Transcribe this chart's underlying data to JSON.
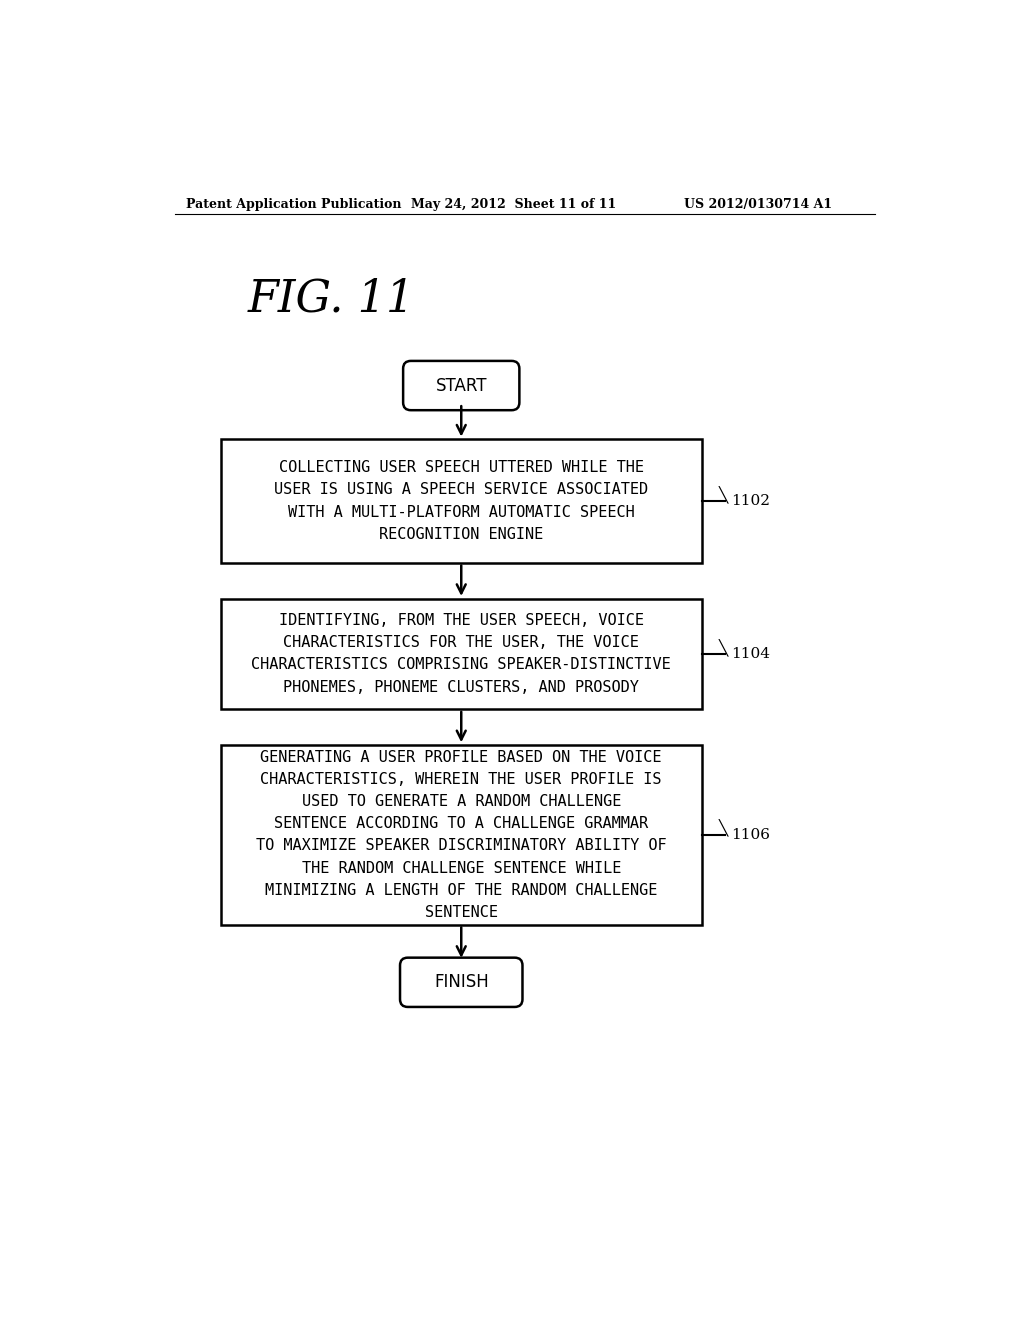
{
  "header_left": "Patent Application Publication",
  "header_mid": "May 24, 2012  Sheet 11 of 11",
  "header_right": "US 2012/0130714 A1",
  "fig_label": "FIG. 11",
  "start_label": "START",
  "finish_label": "FINISH",
  "box1_text": "COLLECTING USER SPEECH UTTERED WHILE THE\nUSER IS USING A SPEECH SERVICE ASSOCIATED\nWITH A MULTI-PLATFORM AUTOMATIC SPEECH\nRECOGNITION ENGINE",
  "box1_ref": "1102",
  "box2_text": "IDENTIFYING, FROM THE USER SPEECH, VOICE\nCHARACTERISTICS FOR THE USER, THE VOICE\nCHARACTERISTICS COMPRISING SPEAKER-DISTINCTIVE\nPHONEMES, PHONEME CLUSTERS, AND PROSODY",
  "box2_ref": "1104",
  "box3_text": "GENERATING A USER PROFILE BASED ON THE VOICE\nCHARACTERISTICS, WHEREIN THE USER PROFILE IS\nUSED TO GENERATE A RANDOM CHALLENGE\nSENTENCE ACCORDING TO A CHALLENGE GRAMMAR\nTO MAXIMIZE SPEAKER DISCRIMINATORY ABILITY OF\nTHE RANDOM CHALLENGE SENTENCE WHILE\nMINIMIZING A LENGTH OF THE RANDOM CHALLENGE\nSENTENCE",
  "box3_ref": "1106",
  "bg_color": "#ffffff",
  "box_edge_color": "#000000",
  "text_color": "#000000",
  "arrow_color": "#000000"
}
